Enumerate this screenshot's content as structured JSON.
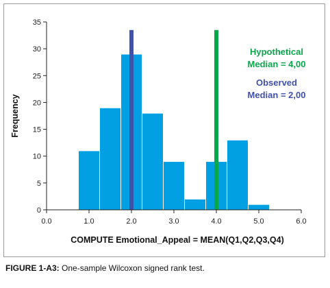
{
  "chart_data": {
    "type": "bar",
    "subtype": "histogram",
    "xlabel": "COMPUTE Emotional_Appeal = MEAN(Q1,Q2,Q3,Q4)",
    "ylabel": "Frequency",
    "xlim": [
      0,
      6
    ],
    "ylim": [
      0,
      35
    ],
    "x_ticks": [
      "0.0",
      "1.0",
      "2.0",
      "3.0",
      "4.0",
      "5.0",
      "6.0"
    ],
    "y_ticks": [
      "0",
      "5",
      "10",
      "15",
      "20",
      "25",
      "30",
      "35"
    ],
    "bins": [
      {
        "x0": 0.75,
        "x1": 1.25,
        "value": 11
      },
      {
        "x0": 1.25,
        "x1": 1.75,
        "value": 19
      },
      {
        "x0": 1.75,
        "x1": 2.25,
        "value": 29
      },
      {
        "x0": 2.25,
        "x1": 2.75,
        "value": 18
      },
      {
        "x0": 2.75,
        "x1": 3.25,
        "value": 9
      },
      {
        "x0": 3.25,
        "x1": 3.75,
        "value": 2
      },
      {
        "x0": 3.75,
        "x1": 4.25,
        "value": 9
      },
      {
        "x0": 4.25,
        "x1": 4.75,
        "value": 13
      },
      {
        "x0": 4.75,
        "x1": 5.25,
        "value": 1
      }
    ],
    "reference_lines": [
      {
        "name": "observed-median",
        "x": 2.0,
        "color": "#3f51a8"
      },
      {
        "name": "hypothetical-median",
        "x": 4.0,
        "color": "#0aa64a"
      }
    ],
    "annotations": [
      {
        "name": "hypothetical",
        "lines": [
          "Hypothetical",
          "Median = 4,00"
        ],
        "color": "#0aa64a"
      },
      {
        "name": "observed",
        "lines": [
          "Observed",
          "Median = 2,00"
        ],
        "color": "#3f51a8"
      }
    ],
    "bar_color": "#00a0e3",
    "grid": false
  },
  "caption": {
    "label": "FIGURE 1-A3:",
    "text": " One-sample Wilcoxon signed rank test."
  }
}
